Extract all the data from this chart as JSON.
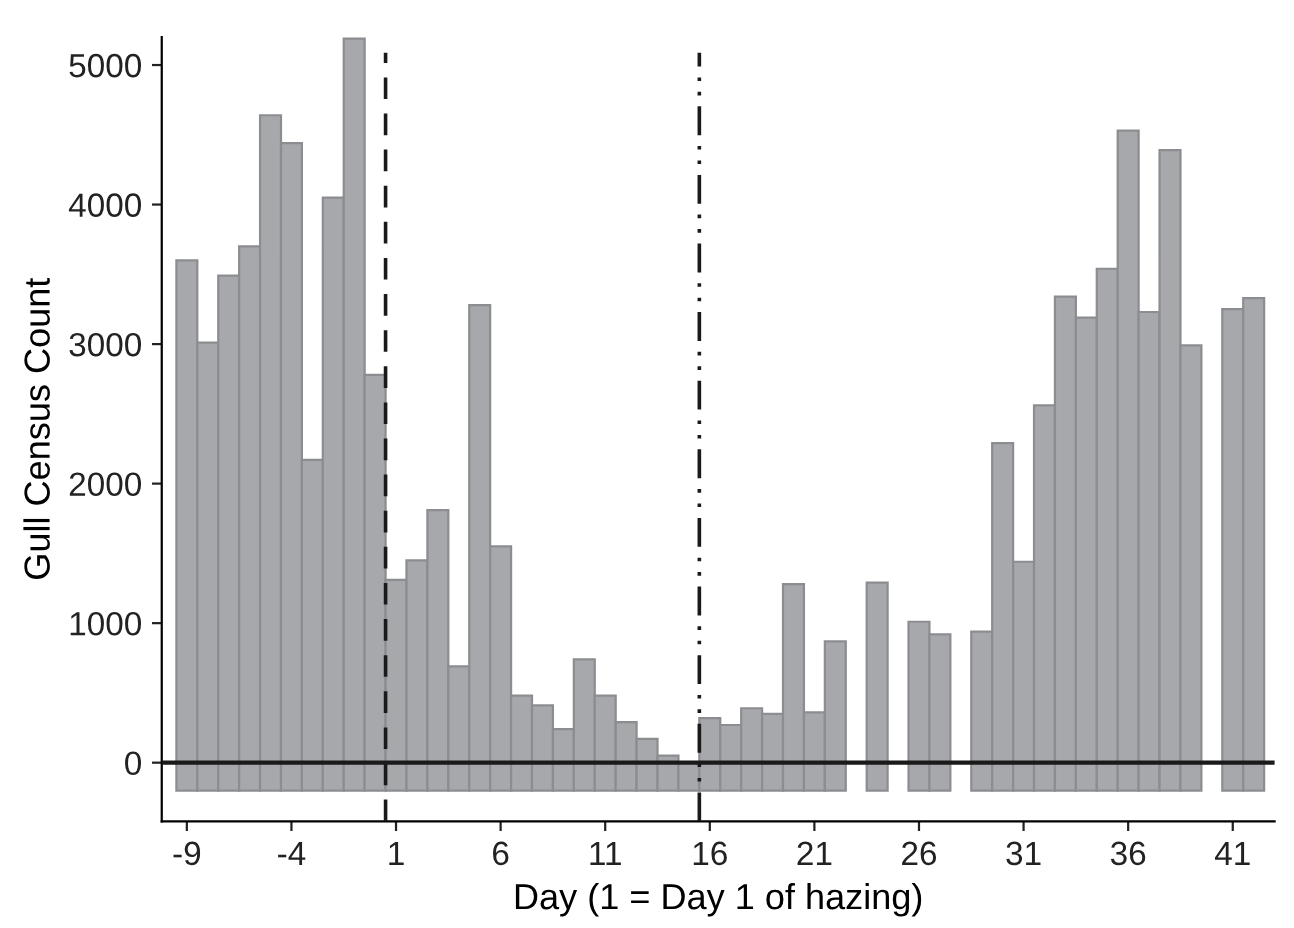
{
  "chart_data": {
    "type": "bar",
    "xlabel": "Day (1 = Day 1 of hazing)",
    "ylabel": "Gull Census Count",
    "x": [
      -9,
      -8,
      -7,
      -6,
      -5,
      -4,
      -3,
      -2,
      -1,
      0,
      1,
      2,
      3,
      4,
      5,
      6,
      7,
      8,
      9,
      10,
      11,
      12,
      13,
      14,
      15,
      16,
      17,
      18,
      19,
      20,
      21,
      22,
      23,
      24,
      25,
      26,
      27,
      28,
      29,
      30,
      31,
      32,
      33,
      34,
      35,
      36,
      37,
      38,
      39,
      40,
      41,
      42
    ],
    "base": [
      -200,
      -200,
      -200,
      -200,
      -200,
      -200,
      -200,
      -200,
      -200,
      -200,
      -200,
      -200,
      -200,
      -200,
      -200,
      -200,
      -200,
      -200,
      -200,
      -200,
      -200,
      -200,
      -200,
      -200,
      -200,
      -200,
      -200,
      -200,
      -200,
      -200,
      -200,
      -200,
      null,
      -200,
      null,
      -200,
      -200,
      null,
      -200,
      -200,
      -200,
      -200,
      -200,
      -200,
      -200,
      -200,
      -200,
      -200,
      -200,
      null,
      -200,
      -200
    ],
    "values": [
      3800,
      3210,
      3690,
      3900,
      4840,
      4640,
      2370,
      4250,
      5390,
      2980,
      1510,
      1650,
      2010,
      890,
      3480,
      1750,
      680,
      610,
      440,
      940,
      680,
      490,
      370,
      250,
      200,
      520,
      470,
      590,
      550,
      1480,
      560,
      1070,
      null,
      1490,
      null,
      1210,
      1120,
      null,
      1140,
      2490,
      1640,
      2760,
      3540,
      3390,
      3740,
      4730,
      3430,
      4590,
      3190,
      null,
      3450,
      3530
    ],
    "color": "#a7a8ac",
    "xlim": [
      -10.2,
      43
    ],
    "xticks": [
      -9,
      -4,
      1,
      6,
      11,
      16,
      21,
      26,
      31,
      36,
      41
    ],
    "ylim": [
      -420,
      5200
    ],
    "yticks": [
      0,
      1000,
      2000,
      3000,
      4000,
      5000
    ],
    "grid": false,
    "ref_lines": [
      {
        "axis": "y",
        "value": 0,
        "line_style": "solid",
        "color": "#1a1a1a"
      },
      {
        "axis": "x",
        "value": 0.5,
        "line_style": "dashed",
        "color": "#1a1a1a"
      },
      {
        "axis": "x",
        "value": 15.5,
        "line_style": "dashdot",
        "color": "#1a1a1a"
      }
    ]
  }
}
